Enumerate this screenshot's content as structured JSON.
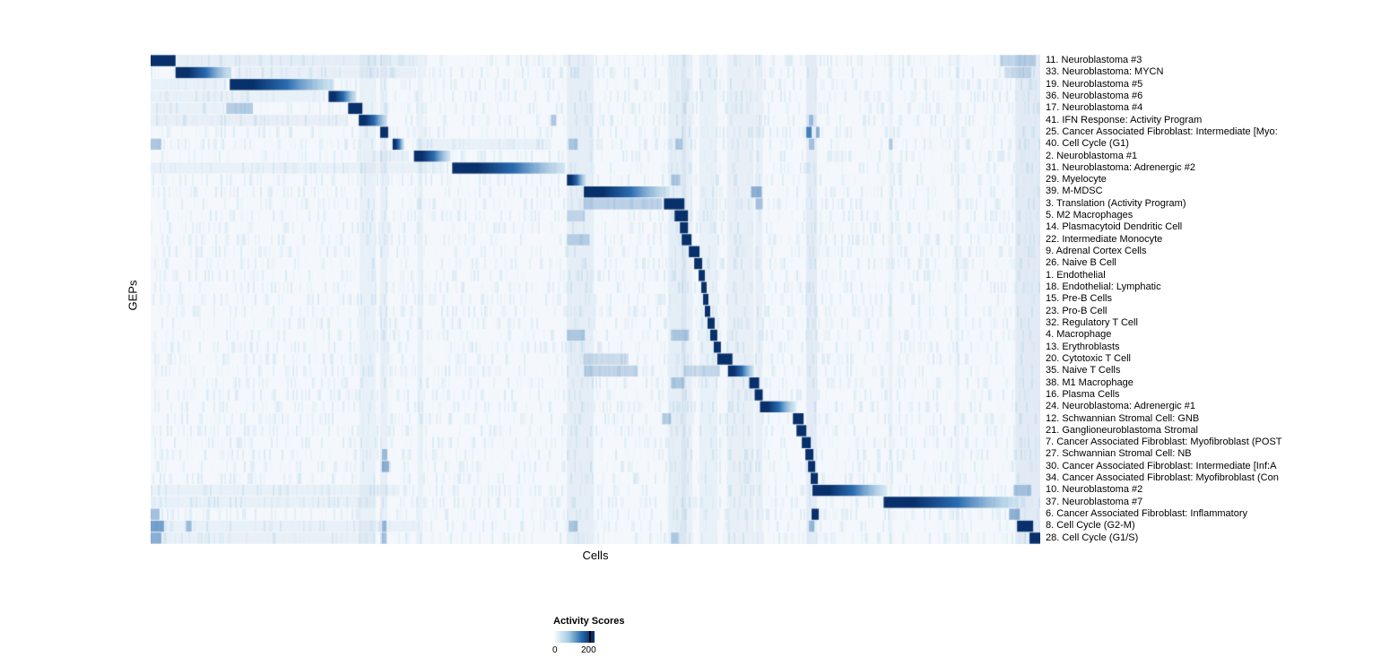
{
  "chart_data": {
    "type": "heatmap",
    "title": "",
    "xlabel": "Cells",
    "ylabel": "GEPs",
    "x_axis_note": "individual cells, unlabeled columns",
    "colormap": "Blues (white to dark navy)",
    "colorbar": {
      "title": "Activity Scores",
      "ticks": [
        0,
        200
      ],
      "tick_labels": [
        "0",
        "200"
      ]
    },
    "colors": {
      "dark": "#08306b",
      "mid": "#2b6cb0",
      "light": "#9ecae1",
      "background": "#f4f8fc"
    },
    "layout": {
      "legend_position": "bottom",
      "row_labels_position": "right",
      "grid": false
    },
    "column_stripes": [
      {
        "x": 0.235,
        "w": 0.018,
        "a": 0.05
      },
      {
        "x": 0.258,
        "w": 0.008,
        "a": 0.06
      },
      {
        "x": 0.3,
        "w": 0.006,
        "a": 0.05
      },
      {
        "x": 0.468,
        "w": 0.03,
        "a": 0.07
      },
      {
        "x": 0.582,
        "w": 0.02,
        "a": 0.07
      },
      {
        "x": 0.597,
        "w": 0.012,
        "a": 0.06
      },
      {
        "x": 0.617,
        "w": 0.02,
        "a": 0.05
      },
      {
        "x": 0.648,
        "w": 0.03,
        "a": 0.06
      },
      {
        "x": 0.68,
        "w": 0.008,
        "a": 0.06
      },
      {
        "x": 0.737,
        "w": 0.012,
        "a": 0.08
      },
      {
        "x": 0.83,
        "w": 0.004,
        "a": 0.05
      },
      {
        "x": 0.905,
        "w": 0.004,
        "a": 0.05
      },
      {
        "x": 0.972,
        "w": 0.028,
        "a": 0.09
      }
    ],
    "rows": [
      {
        "label": "11. Neuroblastoma #3",
        "block": {
          "start": 0.0,
          "end": 0.028,
          "fade": false
        },
        "extras": [
          {
            "x": 0.03,
            "w": 0.27,
            "a": 0.07
          },
          {
            "x": 0.955,
            "w": 0.04,
            "a": 0.25
          }
        ]
      },
      {
        "label": "33. Neuroblastoma: MYCN",
        "block": {
          "start": 0.028,
          "end": 0.091,
          "fade": true
        },
        "extras": [
          {
            "x": 0.095,
            "w": 0.2,
            "a": 0.06
          },
          {
            "x": 0.96,
            "w": 0.03,
            "a": 0.2
          }
        ]
      },
      {
        "label": "19. Neuroblastoma #5",
        "block": {
          "start": 0.089,
          "end": 0.206,
          "fade": true
        },
        "extras": [
          {
            "x": 0.0,
            "w": 0.085,
            "a": 0.05
          }
        ]
      },
      {
        "label": "36. Neuroblastoma #6",
        "block": {
          "start": 0.2,
          "end": 0.231,
          "fade": true
        },
        "extras": [
          {
            "x": 0.0,
            "w": 0.19,
            "a": 0.05
          }
        ]
      },
      {
        "label": "17. Neuroblastoma #4",
        "block": {
          "start": 0.222,
          "end": 0.238,
          "fade": false
        },
        "extras": [
          {
            "x": 0.085,
            "w": 0.03,
            "a": 0.3
          },
          {
            "x": 0.0,
            "w": 0.08,
            "a": 0.05
          }
        ]
      },
      {
        "label": "41. IFN Response: Activity Program",
        "block": {
          "start": 0.234,
          "end": 0.266,
          "fade": true
        },
        "extras": [
          {
            "x": 0.0,
            "w": 0.22,
            "a": 0.06
          },
          {
            "x": 0.45,
            "w": 0.006,
            "a": 0.35
          },
          {
            "x": 0.74,
            "w": 0.005,
            "a": 0.4
          }
        ]
      },
      {
        "label": "25. Cancer Associated Fibroblast: Intermediate [Myo:",
        "block": {
          "start": 0.258,
          "end": 0.267,
          "fade": false
        },
        "extras": [
          {
            "x": 0.737,
            "w": 0.006,
            "a": 0.85
          },
          {
            "x": 0.748,
            "w": 0.004,
            "a": 0.5
          }
        ]
      },
      {
        "label": "40. Cell Cycle (G1)",
        "block": {
          "start": 0.272,
          "end": 0.285,
          "fade": true
        },
        "extras": [
          {
            "x": 0.0,
            "w": 0.012,
            "a": 0.35
          },
          {
            "x": 0.3,
            "w": 0.15,
            "a": 0.05
          },
          {
            "x": 0.47,
            "w": 0.01,
            "a": 0.3
          },
          {
            "x": 0.59,
            "w": 0.008,
            "a": 0.3
          },
          {
            "x": 0.74,
            "w": 0.006,
            "a": 0.35
          },
          {
            "x": 0.83,
            "w": 0.004,
            "a": 0.3
          }
        ]
      },
      {
        "label": "2. Neuroblastoma #1",
        "block": {
          "start": 0.296,
          "end": 0.337,
          "fade": true
        },
        "extras": [
          {
            "x": 0.25,
            "w": 0.04,
            "a": 0.06
          }
        ]
      },
      {
        "label": "31. Neuroblastoma: Adrenergic #2",
        "block": {
          "start": 0.339,
          "end": 0.466,
          "fade": true
        },
        "extras": [
          {
            "x": 0.0,
            "w": 0.33,
            "a": 0.05
          }
        ]
      },
      {
        "label": "29. Myelocyte",
        "block": {
          "start": 0.468,
          "end": 0.489,
          "fade": true
        },
        "extras": [
          {
            "x": 0.585,
            "w": 0.01,
            "a": 0.3
          }
        ]
      },
      {
        "label": "39. M-MDSC",
        "block": {
          "start": 0.487,
          "end": 0.583,
          "fade": true
        },
        "extras": [
          {
            "x": 0.675,
            "w": 0.012,
            "a": 0.5
          }
        ]
      },
      {
        "label": "3. Translation (Activity Program)",
        "block": {
          "start": 0.577,
          "end": 0.6,
          "fade": false
        },
        "extras": [
          {
            "x": 0.487,
            "w": 0.088,
            "a": 0.28
          },
          {
            "x": 0.68,
            "w": 0.008,
            "a": 0.35
          }
        ]
      },
      {
        "label": "5. M2 Macrophages",
        "block": {
          "start": 0.589,
          "end": 0.604,
          "fade": false
        },
        "extras": [
          {
            "x": 0.468,
            "w": 0.02,
            "a": 0.2
          }
        ]
      },
      {
        "label": "14. Plasmacytoid Dendritic Cell",
        "block": {
          "start": 0.595,
          "end": 0.604,
          "fade": false
        },
        "extras": []
      },
      {
        "label": "22. Intermediate Monocyte",
        "block": {
          "start": 0.597,
          "end": 0.608,
          "fade": false
        },
        "extras": [
          {
            "x": 0.468,
            "w": 0.025,
            "a": 0.25
          }
        ]
      },
      {
        "label": "9. Adrenal Cortex Cells",
        "block": {
          "start": 0.605,
          "end": 0.617,
          "fade": false
        },
        "extras": []
      },
      {
        "label": "26. Naive B Cell",
        "block": {
          "start": 0.611,
          "end": 0.62,
          "fade": false
        },
        "extras": []
      },
      {
        "label": "1. Endothelial",
        "block": {
          "start": 0.616,
          "end": 0.623,
          "fade": false
        },
        "extras": []
      },
      {
        "label": "18. Endothelial: Lymphatic",
        "block": {
          "start": 0.619,
          "end": 0.625,
          "fade": false
        },
        "extras": []
      },
      {
        "label": "15. Pre-B Cells",
        "block": {
          "start": 0.621,
          "end": 0.627,
          "fade": false
        },
        "extras": []
      },
      {
        "label": "23. Pro-B Cell",
        "block": {
          "start": 0.623,
          "end": 0.629,
          "fade": false
        },
        "extras": []
      },
      {
        "label": "32. Regulatory T Cell",
        "block": {
          "start": 0.626,
          "end": 0.634,
          "fade": false
        },
        "extras": []
      },
      {
        "label": "4. Macrophage",
        "block": {
          "start": 0.629,
          "end": 0.637,
          "fade": false
        },
        "extras": [
          {
            "x": 0.468,
            "w": 0.02,
            "a": 0.3
          },
          {
            "x": 0.585,
            "w": 0.02,
            "a": 0.3
          }
        ]
      },
      {
        "label": "13. Erythroblasts",
        "block": {
          "start": 0.633,
          "end": 0.641,
          "fade": false
        },
        "extras": []
      },
      {
        "label": "20. Cytotoxic T Cell",
        "block": {
          "start": 0.637,
          "end": 0.654,
          "fade": false
        },
        "extras": [
          {
            "x": 0.487,
            "w": 0.05,
            "a": 0.2
          }
        ]
      },
      {
        "label": "35. Naive T Cells",
        "block": {
          "start": 0.649,
          "end": 0.678,
          "fade": true
        },
        "extras": [
          {
            "x": 0.487,
            "w": 0.06,
            "a": 0.25
          },
          {
            "x": 0.6,
            "w": 0.04,
            "a": 0.2
          }
        ]
      },
      {
        "label": "38. M1 Macrophage",
        "block": {
          "start": 0.673,
          "end": 0.684,
          "fade": false
        },
        "extras": [
          {
            "x": 0.585,
            "w": 0.015,
            "a": 0.3
          }
        ]
      },
      {
        "label": "16. Plasma Cells",
        "block": {
          "start": 0.679,
          "end": 0.688,
          "fade": false
        },
        "extras": []
      },
      {
        "label": "24. Neuroblastoma: Adrenergic #1",
        "block": {
          "start": 0.685,
          "end": 0.724,
          "fade": true
        },
        "extras": []
      },
      {
        "label": "12. Schwannian Stromal Cell: GNB",
        "block": {
          "start": 0.722,
          "end": 0.734,
          "fade": false
        },
        "extras": [
          {
            "x": 0.575,
            "w": 0.01,
            "a": 0.3
          }
        ]
      },
      {
        "label": "21. Ganglioneuroblastoma Stromal",
        "block": {
          "start": 0.726,
          "end": 0.737,
          "fade": false
        },
        "extras": []
      },
      {
        "label": "7. Cancer Associated Fibroblast: Myofibroblast (POST",
        "block": {
          "start": 0.732,
          "end": 0.742,
          "fade": false
        },
        "extras": []
      },
      {
        "label": "27. Schwannian Stromal Cell: NB",
        "block": {
          "start": 0.736,
          "end": 0.745,
          "fade": false
        },
        "extras": [
          {
            "x": 0.26,
            "w": 0.006,
            "a": 0.4
          }
        ]
      },
      {
        "label": "30. Cancer Associated Fibroblast: Intermediate [Inf:A",
        "block": {
          "start": 0.739,
          "end": 0.747,
          "fade": false
        },
        "extras": [
          {
            "x": 0.26,
            "w": 0.008,
            "a": 0.5
          }
        ]
      },
      {
        "label": "34. Cancer Associated Fibroblast: Myofibroblast (Con",
        "block": {
          "start": 0.742,
          "end": 0.75,
          "fade": false
        },
        "extras": []
      },
      {
        "label": "10. Neuroblastoma #2",
        "block": {
          "start": 0.744,
          "end": 0.827,
          "fade": true
        },
        "extras": [
          {
            "x": 0.0,
            "w": 0.28,
            "a": 0.05
          },
          {
            "x": 0.97,
            "w": 0.02,
            "a": 0.35
          }
        ]
      },
      {
        "label": "37. Neuroblastoma #7",
        "block": {
          "start": 0.824,
          "end": 0.976,
          "fade": true
        },
        "extras": [
          {
            "x": 0.0,
            "w": 0.25,
            "a": 0.05
          }
        ]
      },
      {
        "label": "6. Cancer Associated Fibroblast: Inflammatory",
        "block": {
          "start": 0.743,
          "end": 0.751,
          "fade": false
        },
        "extras": [
          {
            "x": 0.0,
            "w": 0.01,
            "a": 0.4
          },
          {
            "x": 0.965,
            "w": 0.012,
            "a": 0.5
          }
        ]
      },
      {
        "label": "8. Cell Cycle (G2-M)",
        "block": {
          "start": 0.974,
          "end": 0.992,
          "fade": false
        },
        "extras": [
          {
            "x": 0.0,
            "w": 0.015,
            "a": 0.6
          },
          {
            "x": 0.04,
            "w": 0.006,
            "a": 0.4
          },
          {
            "x": 0.0,
            "w": 0.3,
            "a": 0.05
          },
          {
            "x": 0.26,
            "w": 0.005,
            "a": 0.4
          },
          {
            "x": 0.47,
            "w": 0.01,
            "a": 0.3
          },
          {
            "x": 0.74,
            "w": 0.006,
            "a": 0.4
          }
        ]
      },
      {
        "label": "28. Cell Cycle (G1/S)",
        "block": {
          "start": 0.988,
          "end": 1.0,
          "fade": false
        },
        "extras": [
          {
            "x": 0.0,
            "w": 0.012,
            "a": 0.5
          },
          {
            "x": 0.0,
            "w": 0.25,
            "a": 0.05
          },
          {
            "x": 0.26,
            "w": 0.005,
            "a": 0.35
          },
          {
            "x": 0.585,
            "w": 0.008,
            "a": 0.3
          }
        ]
      }
    ]
  }
}
